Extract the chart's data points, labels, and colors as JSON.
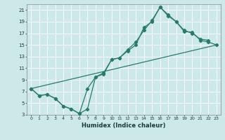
{
  "xlabel": "Humidex (Indice chaleur)",
  "bg_color": "#cce8e8",
  "grid_color": "#ffffff",
  "line_color": "#2a7a6a",
  "xlim": [
    -0.5,
    23.5
  ],
  "ylim": [
    3,
    22
  ],
  "xticks": [
    0,
    1,
    2,
    3,
    4,
    5,
    6,
    7,
    8,
    9,
    10,
    11,
    12,
    13,
    14,
    15,
    16,
    17,
    18,
    19,
    20,
    21,
    22,
    23
  ],
  "yticks": [
    3,
    5,
    7,
    9,
    11,
    13,
    15,
    17,
    19,
    21
  ],
  "line1_x": [
    0,
    1,
    2,
    3,
    4,
    5,
    6,
    7,
    8,
    9,
    10,
    11,
    12,
    13,
    14,
    15,
    16,
    17,
    18,
    19,
    20,
    21,
    22
  ],
  "line1_y": [
    7.5,
    6.3,
    6.5,
    5.8,
    4.5,
    4.0,
    3.2,
    7.5,
    9.5,
    10.2,
    12.5,
    12.8,
    14.2,
    15.5,
    17.5,
    19.2,
    21.5,
    20.2,
    19.0,
    17.5,
    17.0,
    16.0,
    15.8
  ],
  "line2_x": [
    0,
    23
  ],
  "line2_y": [
    7.5,
    15.0
  ],
  "line3_x": [
    0,
    1,
    2,
    3,
    4,
    5,
    6,
    7,
    8,
    9,
    10,
    11,
    12,
    13,
    14,
    15,
    16,
    17,
    18,
    19,
    20,
    21,
    22,
    23
  ],
  "line3_y": [
    7.5,
    6.3,
    6.5,
    5.8,
    4.5,
    4.0,
    3.2,
    4.0,
    9.5,
    10.0,
    12.5,
    12.8,
    14.0,
    15.0,
    18.0,
    19.0,
    21.5,
    20.0,
    19.0,
    17.3,
    17.2,
    15.8,
    15.5,
    15.0
  ]
}
